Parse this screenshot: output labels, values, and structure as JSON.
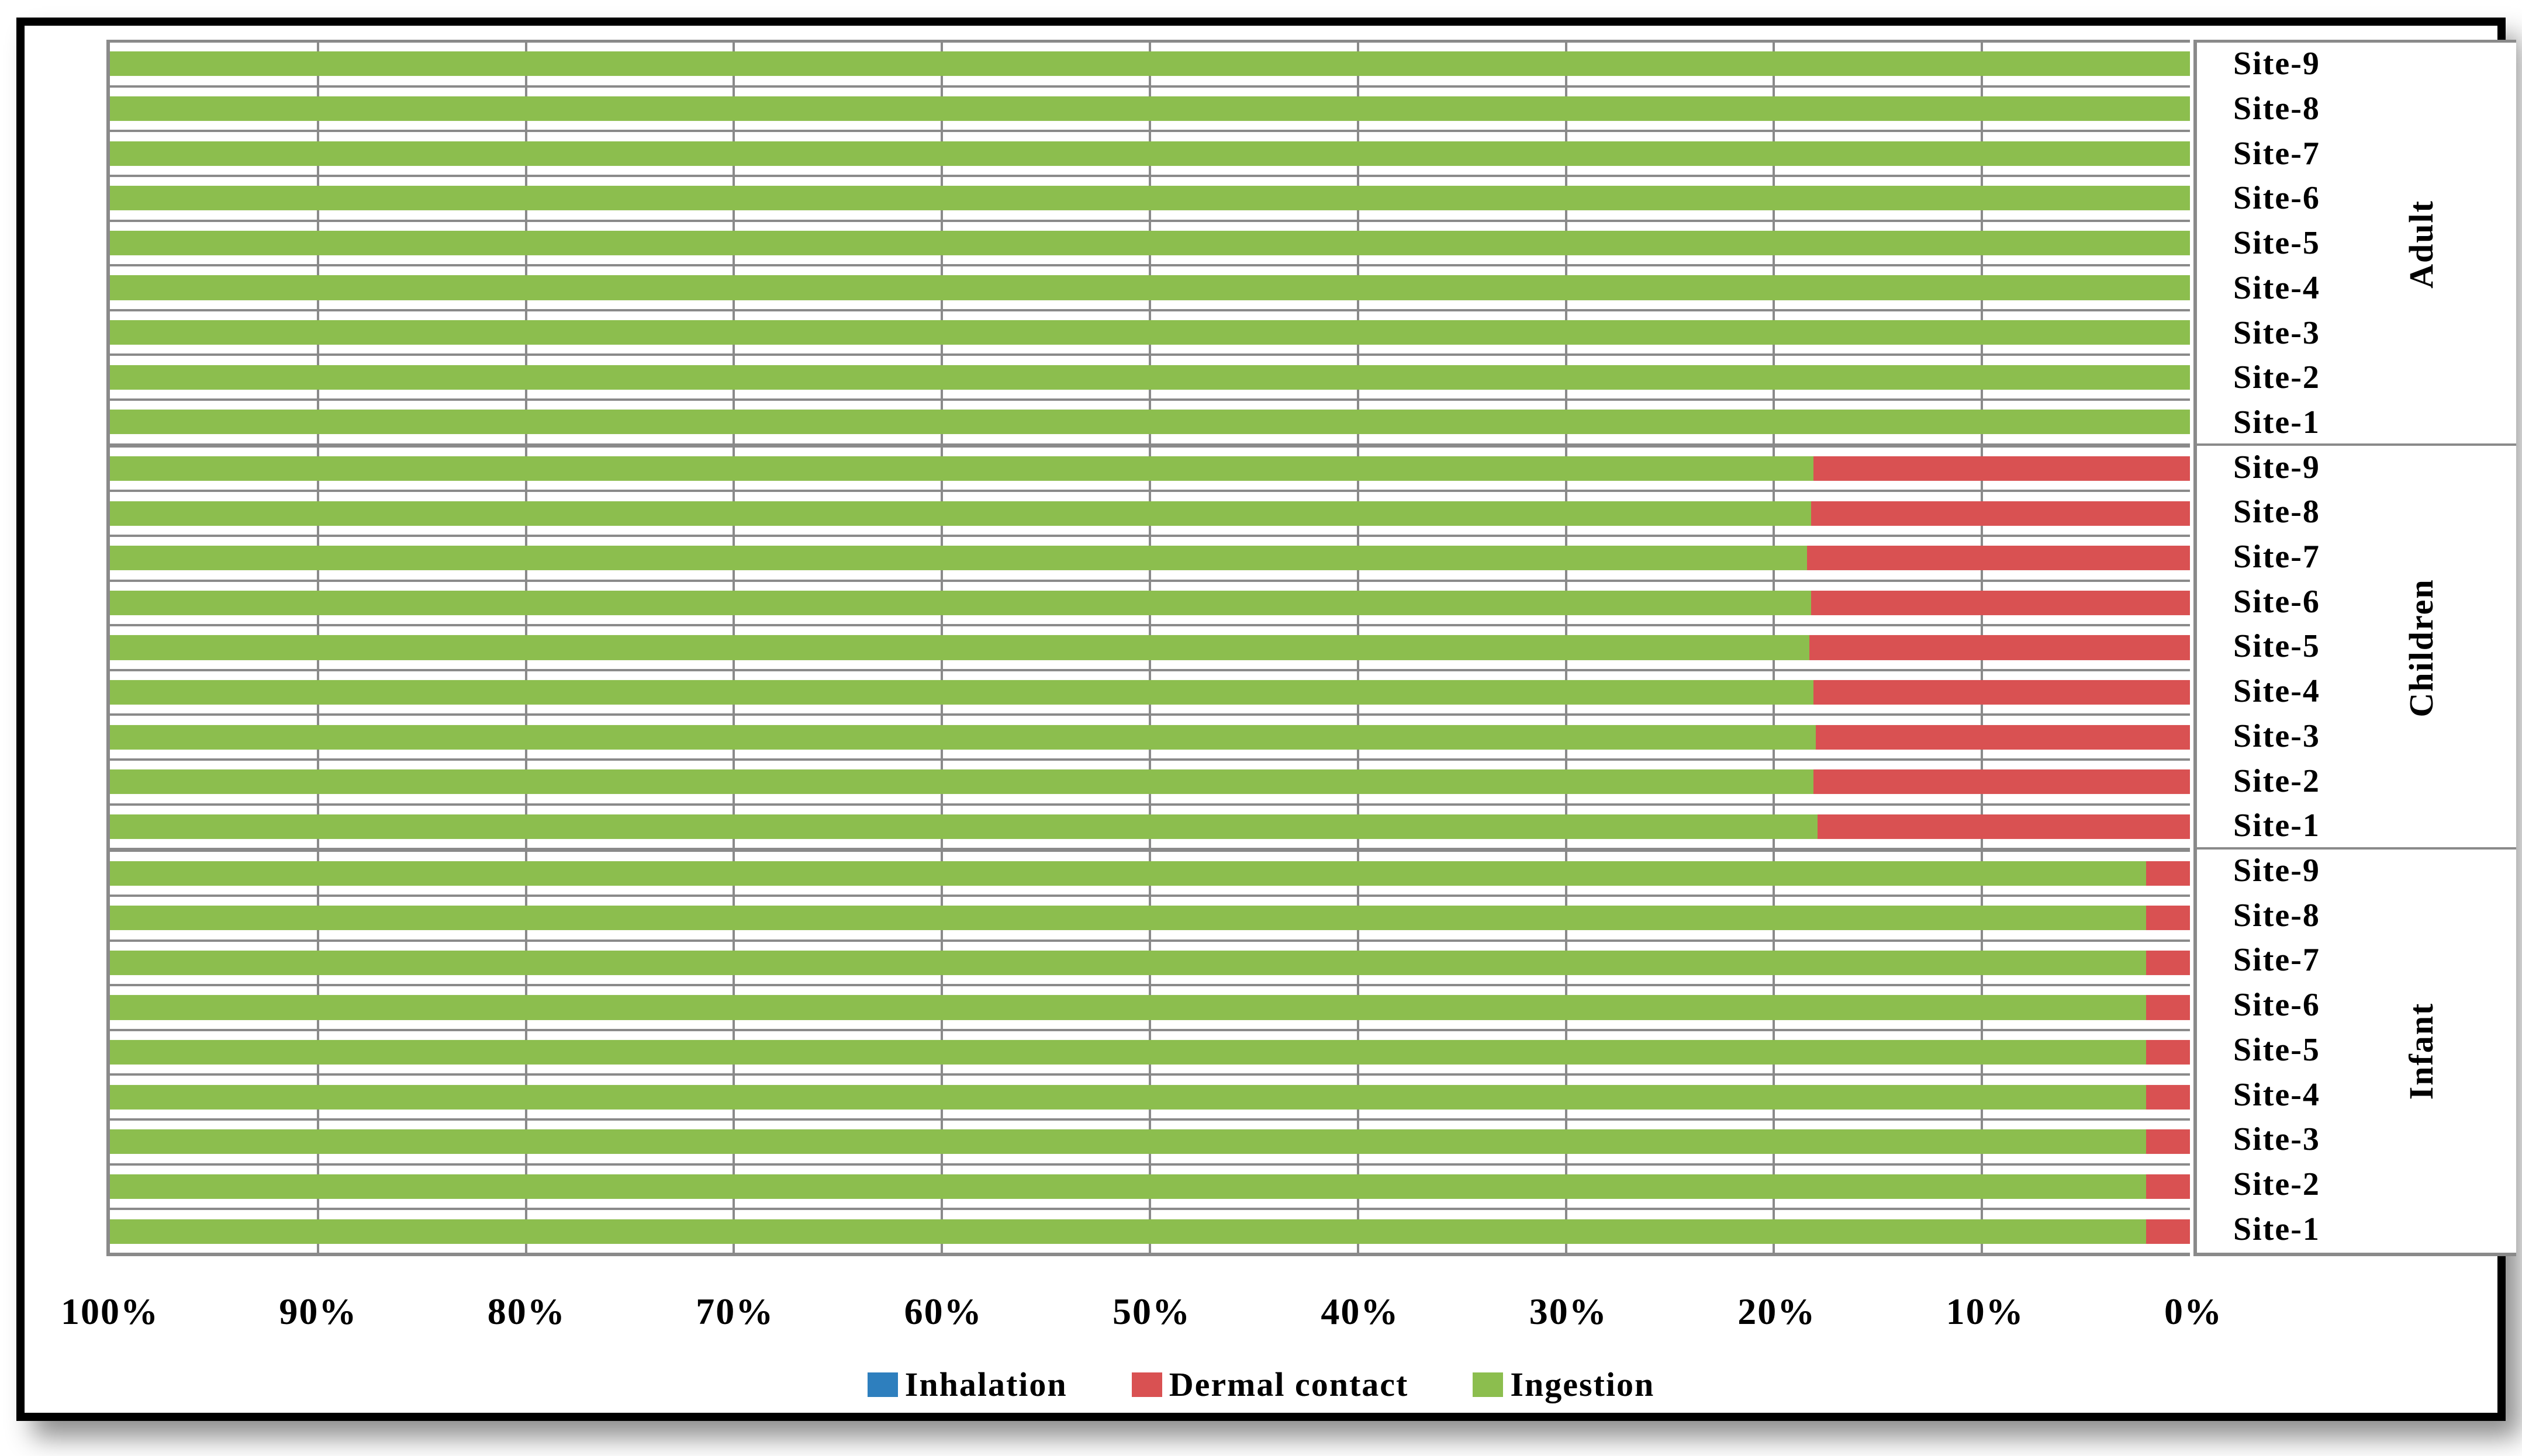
{
  "colors": {
    "inhalation": "#2E7FBE",
    "dermal_contact": "#D95152",
    "ingestion": "#8CBE4E",
    "gridline": "#8a8a8a",
    "frame": "#000000"
  },
  "chart_data": {
    "type": "bar",
    "variant": "horizontal-stacked-100pct",
    "title": "",
    "xlabel": "",
    "ylabel": "",
    "axis": {
      "min": 0,
      "max": 100,
      "direction": "reversed",
      "note": "100% at left, 0% at right; vertical gridlines every 10%",
      "tick_labels": [
        "100%",
        "90%",
        "80%",
        "70%",
        "60%",
        "50%",
        "40%",
        "30%",
        "20%",
        "10%",
        "0%"
      ]
    },
    "legend": {
      "position": "bottom",
      "entries": [
        {
          "label": "Inhalation",
          "color": "#2E7FBE"
        },
        {
          "label": "Dermal contact",
          "color": "#D95152"
        },
        {
          "label": "Ingestion",
          "color": "#8CBE4E"
        }
      ]
    },
    "series_order_from_zero_pct": [
      "inhalation",
      "dermal_contact",
      "ingestion"
    ],
    "groups": [
      {
        "label": "Adult",
        "sites": [
          {
            "label": "Site-9",
            "ingestion": 100,
            "dermal_contact": 0,
            "inhalation": 0
          },
          {
            "label": "Site-8",
            "ingestion": 100,
            "dermal_contact": 0,
            "inhalation": 0
          },
          {
            "label": "Site-7",
            "ingestion": 100,
            "dermal_contact": 0,
            "inhalation": 0
          },
          {
            "label": "Site-6",
            "ingestion": 100,
            "dermal_contact": 0,
            "inhalation": 0
          },
          {
            "label": "Site-5",
            "ingestion": 100,
            "dermal_contact": 0,
            "inhalation": 0
          },
          {
            "label": "Site-4",
            "ingestion": 100,
            "dermal_contact": 0,
            "inhalation": 0
          },
          {
            "label": "Site-3",
            "ingestion": 100,
            "dermal_contact": 0,
            "inhalation": 0
          },
          {
            "label": "Site-2",
            "ingestion": 100,
            "dermal_contact": 0,
            "inhalation": 0
          },
          {
            "label": "Site-1",
            "ingestion": 100,
            "dermal_contact": 0,
            "inhalation": 0
          }
        ]
      },
      {
        "label": "Children",
        "sites": [
          {
            "label": "Site-9",
            "ingestion": 81.9,
            "dermal_contact": 18.1,
            "inhalation": 0
          },
          {
            "label": "Site-8",
            "ingestion": 81.8,
            "dermal_contact": 18.2,
            "inhalation": 0
          },
          {
            "label": "Site-7",
            "ingestion": 81.6,
            "dermal_contact": 18.4,
            "inhalation": 0
          },
          {
            "label": "Site-6",
            "ingestion": 81.8,
            "dermal_contact": 18.2,
            "inhalation": 0
          },
          {
            "label": "Site-5",
            "ingestion": 81.7,
            "dermal_contact": 18.3,
            "inhalation": 0
          },
          {
            "label": "Site-4",
            "ingestion": 81.9,
            "dermal_contact": 18.1,
            "inhalation": 0
          },
          {
            "label": "Site-3",
            "ingestion": 82.0,
            "dermal_contact": 18.0,
            "inhalation": 0
          },
          {
            "label": "Site-2",
            "ingestion": 81.9,
            "dermal_contact": 18.1,
            "inhalation": 0
          },
          {
            "label": "Site-1",
            "ingestion": 82.1,
            "dermal_contact": 17.9,
            "inhalation": 0
          }
        ]
      },
      {
        "label": "Infant",
        "sites": [
          {
            "label": "Site-9",
            "ingestion": 97.9,
            "dermal_contact": 2.1,
            "inhalation": 0
          },
          {
            "label": "Site-8",
            "ingestion": 97.9,
            "dermal_contact": 2.1,
            "inhalation": 0
          },
          {
            "label": "Site-7",
            "ingestion": 97.9,
            "dermal_contact": 2.1,
            "inhalation": 0
          },
          {
            "label": "Site-6",
            "ingestion": 97.9,
            "dermal_contact": 2.1,
            "inhalation": 0
          },
          {
            "label": "Site-5",
            "ingestion": 97.9,
            "dermal_contact": 2.1,
            "inhalation": 0
          },
          {
            "label": "Site-4",
            "ingestion": 97.9,
            "dermal_contact": 2.1,
            "inhalation": 0
          },
          {
            "label": "Site-3",
            "ingestion": 97.9,
            "dermal_contact": 2.1,
            "inhalation": 0
          },
          {
            "label": "Site-2",
            "ingestion": 97.9,
            "dermal_contact": 2.1,
            "inhalation": 0
          },
          {
            "label": "Site-1",
            "ingestion": 97.9,
            "dermal_contact": 2.1,
            "inhalation": 0
          }
        ]
      }
    ]
  }
}
